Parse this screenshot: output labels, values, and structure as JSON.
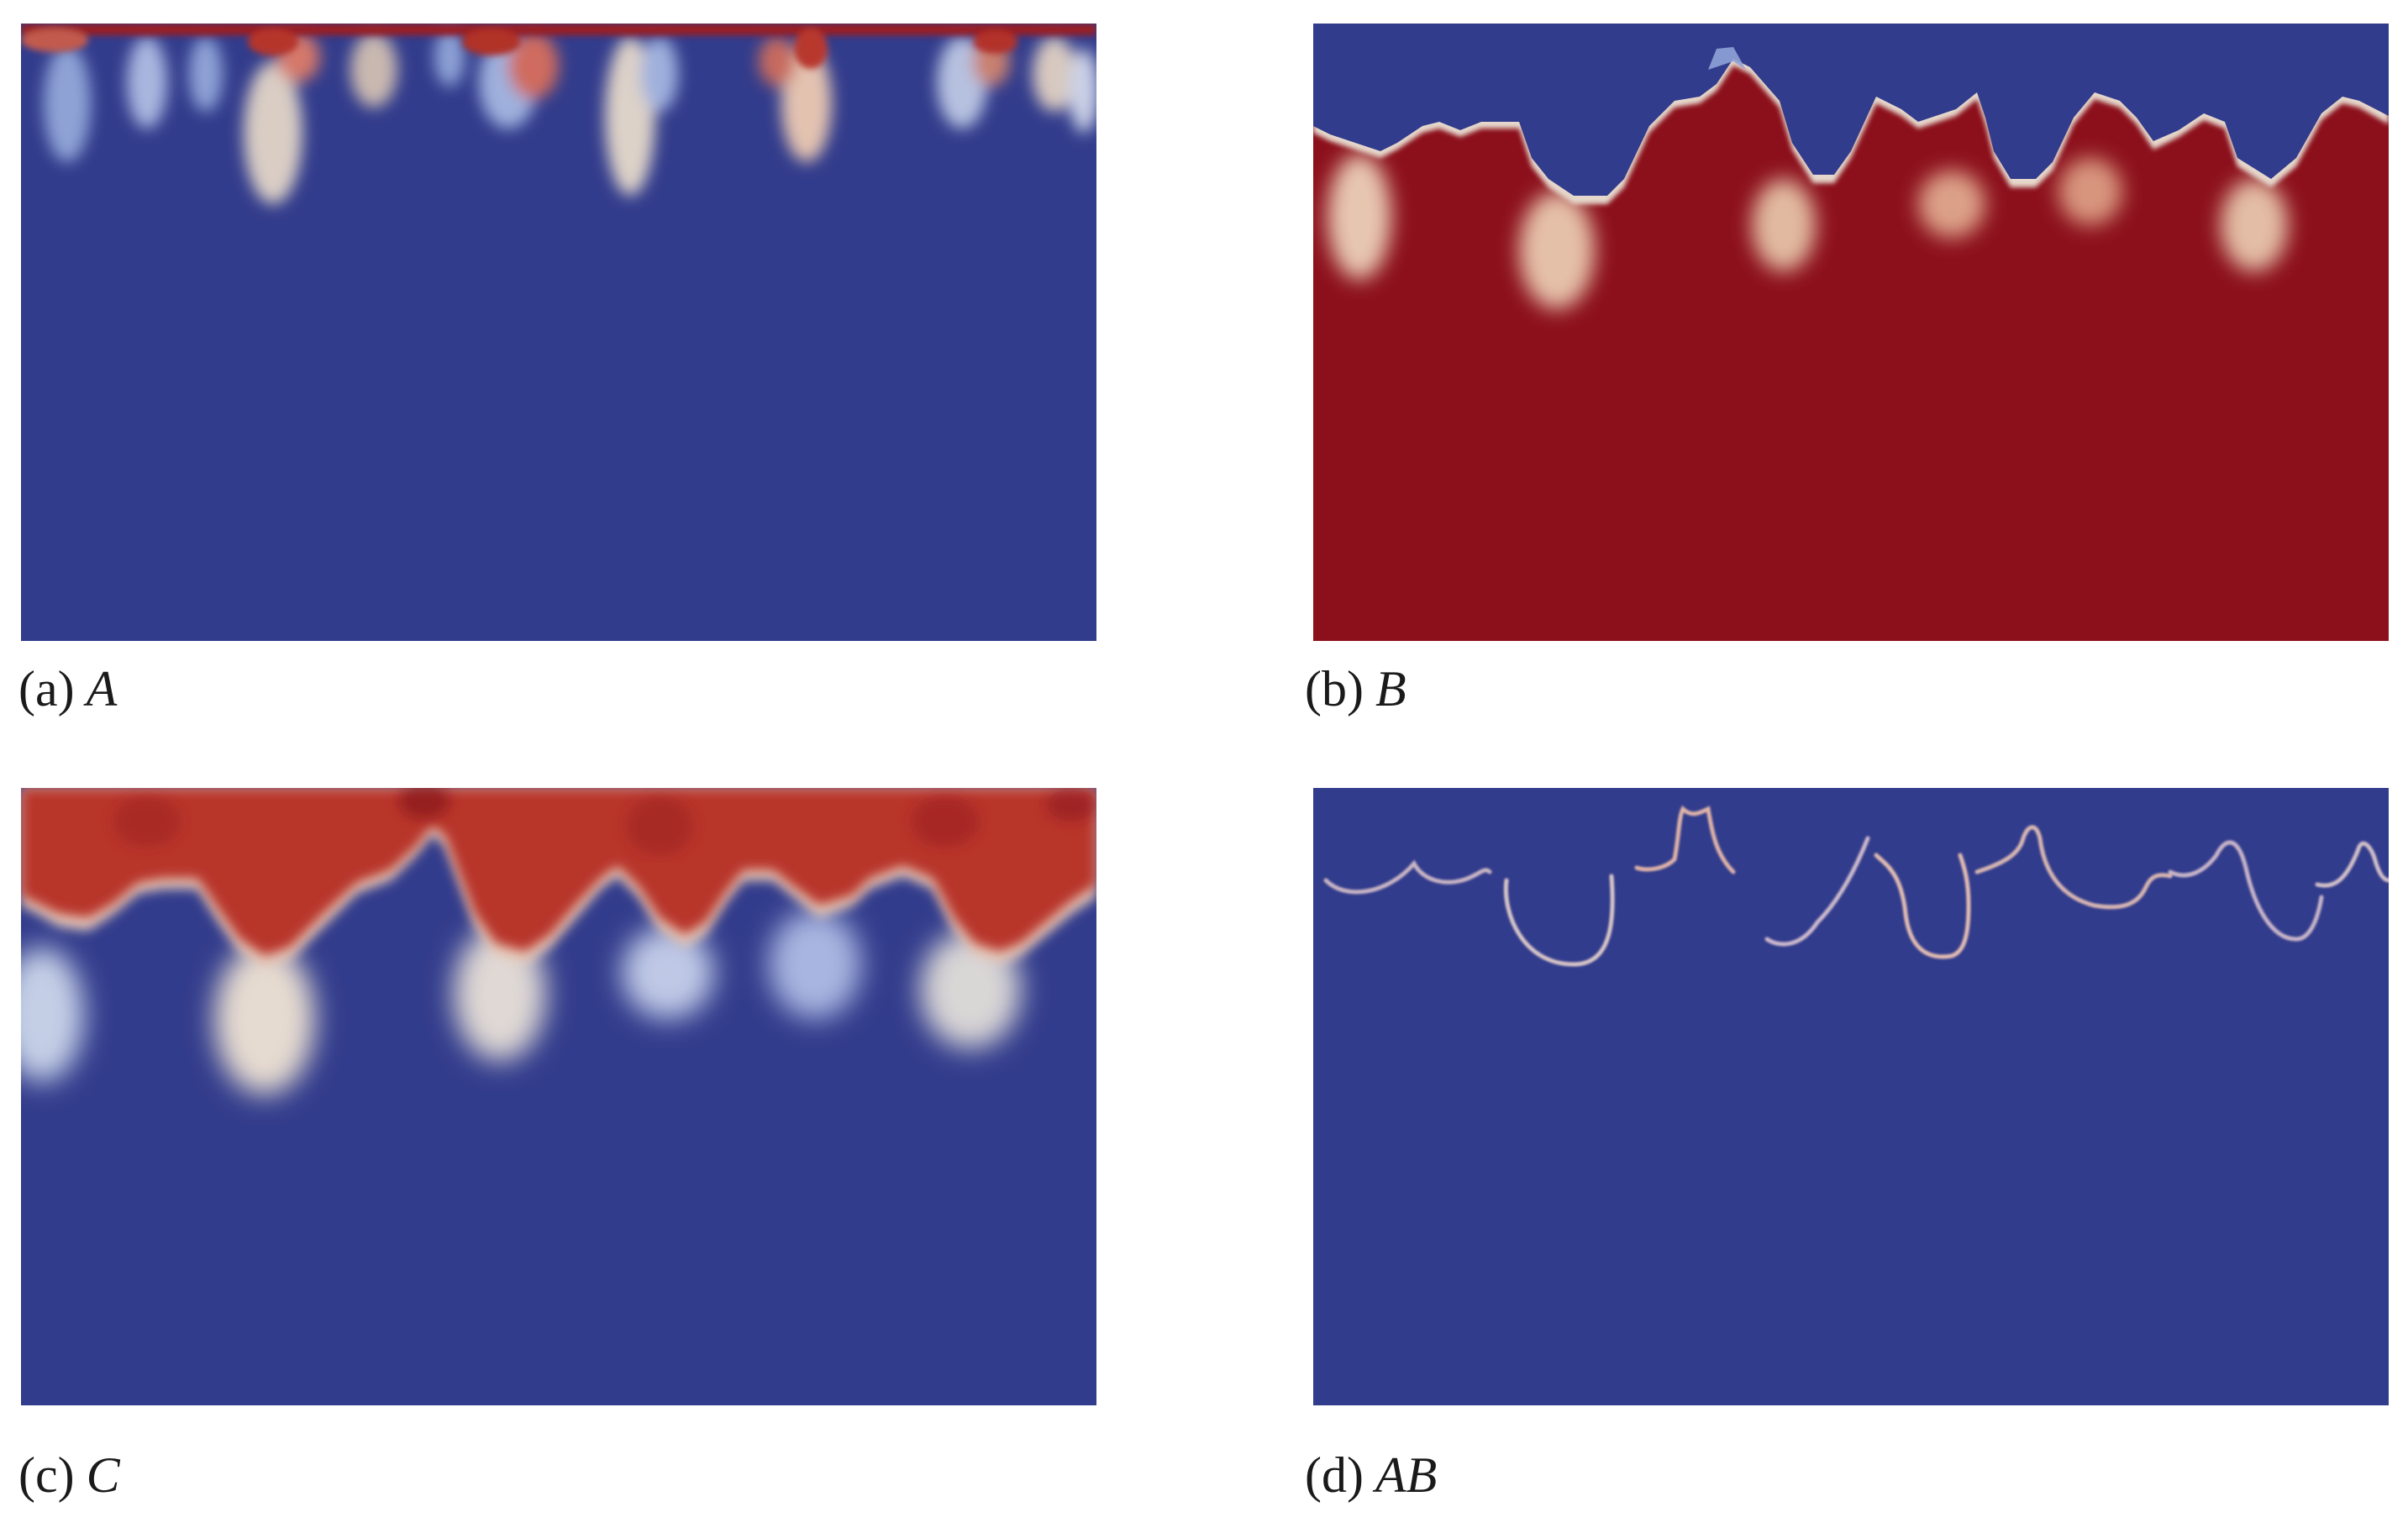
{
  "colors": {
    "low": "#323c8c",
    "high": "#8c101c",
    "mid_light": "#e8d6c8",
    "mid_blue": "#8ea2d6",
    "mid_red": "#d5786a"
  },
  "panels": [
    {
      "letter": "(a)",
      "label": "A"
    },
    {
      "letter": "(b)",
      "label": "B"
    },
    {
      "letter": "(c)",
      "label": "C"
    },
    {
      "letter": "(d)",
      "label": "AB"
    }
  ]
}
